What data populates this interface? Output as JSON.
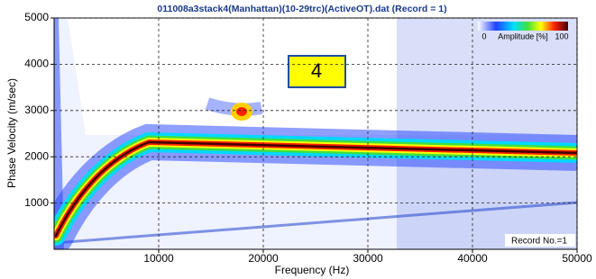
{
  "chart_data": {
    "type": "heatmap",
    "title": "011008a3stack4(Manhattan)(10-29trc)(ActiveOT).dat (Record = 1)",
    "xlabel": "Frequency (Hz)",
    "ylabel": "Phase Velocity (m/sec)",
    "xlim": [
      0,
      50000
    ],
    "ylim": [
      0,
      5000
    ],
    "xticks": [
      10000,
      20000,
      30000,
      40000,
      50000
    ],
    "yticks": [
      1000,
      2000,
      3000,
      4000,
      5000
    ],
    "grid": true,
    "colorbar": {
      "min": 0,
      "max": 100,
      "label": "Amplitude [%]"
    },
    "annotations": [
      "4",
      "Record No.=1"
    ]
  }
}
